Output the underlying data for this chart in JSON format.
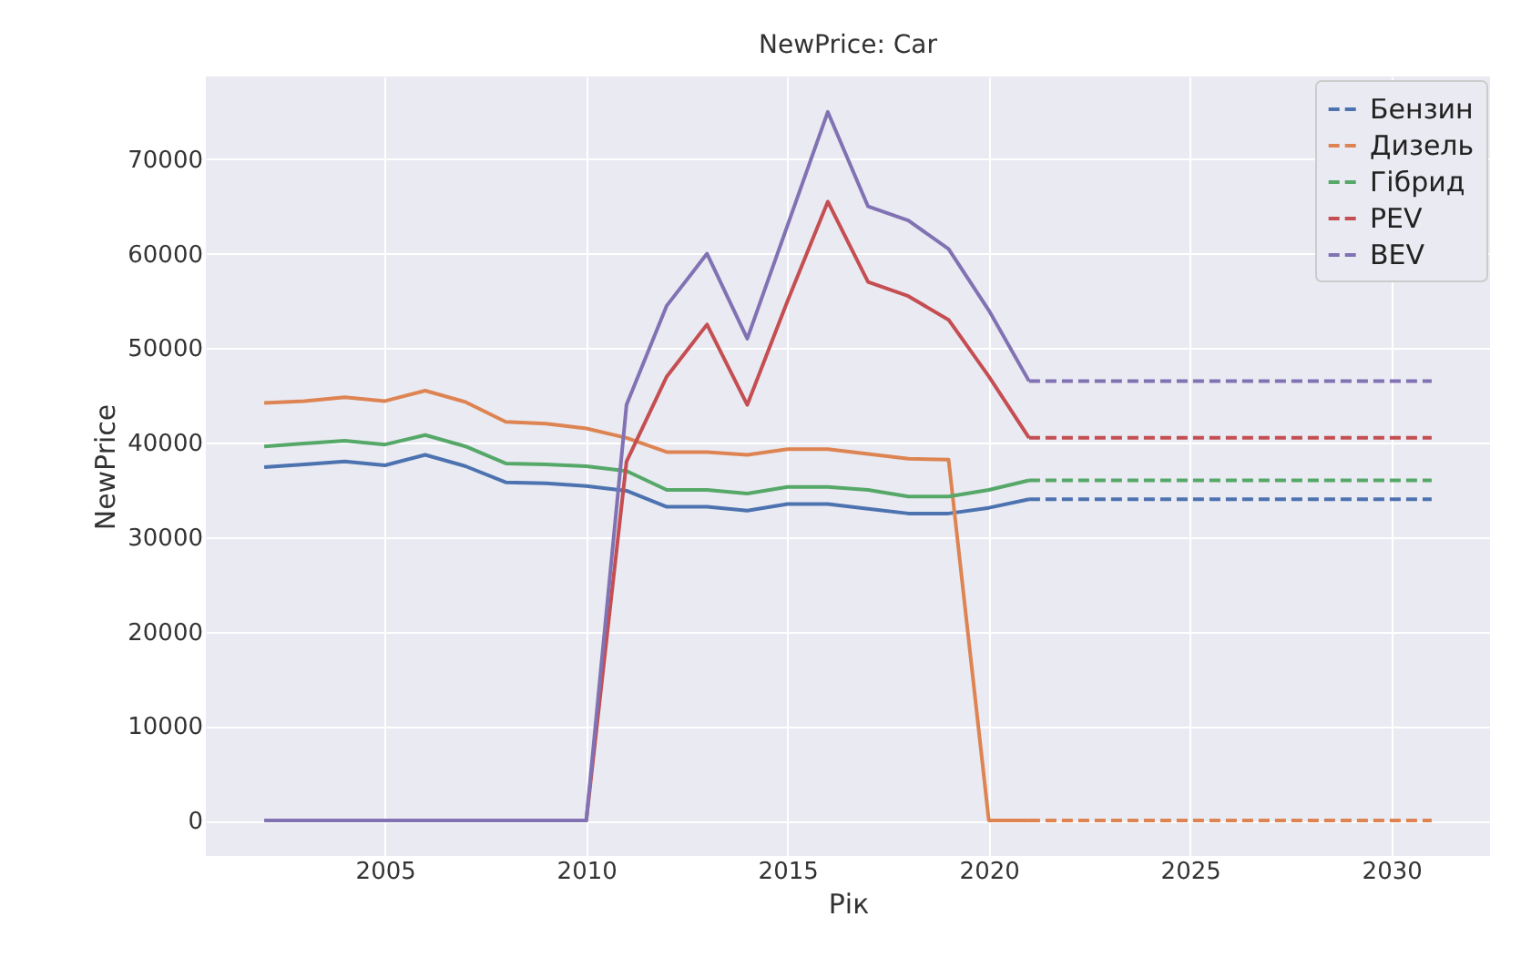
{
  "chart_data": {
    "type": "line",
    "title": "NewPrice: Car",
    "xlabel": "Рік",
    "ylabel": "NewPrice",
    "xlim": [
      2000.55,
      2032.45
    ],
    "xticks": [
      2005,
      2010,
      2015,
      2020,
      2025,
      2030
    ],
    "ylim": [
      -3750,
      78750
    ],
    "yticks": [
      0,
      10000,
      20000,
      30000,
      40000,
      50000,
      60000,
      70000
    ],
    "grid": true,
    "legend": "top right",
    "line_style": "solid",
    "series": [
      {
        "color": "#4c72b0",
        "x": [
          2002,
          2003,
          2004,
          2005,
          2006,
          2007,
          2008,
          2009,
          2010,
          2011,
          2012,
          2013,
          2014,
          2015,
          2016,
          2017,
          2018,
          2019,
          2020,
          2021
        ],
        "values": [
          37400,
          37700,
          38000,
          37600,
          38700,
          37500,
          35800,
          35700,
          35400,
          34900,
          33200,
          33200,
          32800,
          33500,
          33500,
          33000,
          32500,
          32500,
          33100,
          34000
        ]
      },
      {
        "color": "#dd8452",
        "x": [
          2002,
          2003,
          2004,
          2005,
          2006,
          2007,
          2008,
          2009,
          2010,
          2011,
          2012,
          2013,
          2014,
          2015,
          2016,
          2017,
          2018,
          2019,
          2020,
          2021
        ],
        "values": [
          44200,
          44400,
          44800,
          44400,
          45500,
          44300,
          42200,
          42000,
          41500,
          40500,
          39000,
          39000,
          38700,
          39300,
          39300,
          38800,
          38300,
          38200,
          0,
          0
        ]
      },
      {
        "color": "#55a868",
        "x": [
          2002,
          2003,
          2004,
          2005,
          2006,
          2007,
          2008,
          2009,
          2010,
          2011,
          2012,
          2013,
          2014,
          2015,
          2016,
          2017,
          2018,
          2019,
          2020,
          2021
        ],
        "values": [
          39600,
          39900,
          40200,
          39800,
          40800,
          39600,
          37800,
          37700,
          37500,
          37000,
          35000,
          35000,
          34600,
          35300,
          35300,
          35000,
          34300,
          34300,
          35000,
          36000
        ]
      },
      {
        "color": "#c44e52",
        "x": [
          2009,
          2010,
          2011,
          2012,
          2013,
          2014,
          2015,
          2016,
          2017,
          2018,
          2019,
          2020,
          2021
        ],
        "values": [
          0,
          0,
          38000,
          47000,
          52500,
          44000,
          55000,
          65500,
          57000,
          55500,
          53000,
          47000,
          40500
        ]
      },
      {
        "color": "#8172b3",
        "x": [
          2002,
          2003,
          2004,
          2005,
          2006,
          2007,
          2008,
          2009,
          2010,
          2011,
          2012,
          2013,
          2014,
          2015,
          2016,
          2017,
          2018,
          2019,
          2020,
          2021
        ],
        "values": [
          0,
          0,
          0,
          0,
          0,
          0,
          0,
          0,
          0,
          44000,
          54500,
          60000,
          51000,
          63000,
          75000,
          65000,
          63500,
          60500,
          54000,
          46500
        ]
      },
      {
        "name": "Бензин",
        "color": "#4c72b0",
        "line_style": "dashed",
        "x": [
          2021,
          2031
        ],
        "values": [
          34000,
          34000
        ]
      },
      {
        "name": "Дизель",
        "color": "#dd8452",
        "line_style": "dashed",
        "x": [
          2021,
          2031
        ],
        "values": [
          0,
          0
        ]
      },
      {
        "name": "Гібрид",
        "color": "#55a868",
        "line_style": "dashed",
        "x": [
          2021,
          2031
        ],
        "values": [
          36000,
          36000
        ]
      },
      {
        "name": "PEV",
        "color": "#c44e52",
        "line_style": "dashed",
        "x": [
          2021,
          2031
        ],
        "values": [
          40500,
          40500
        ]
      },
      {
        "name": "BEV",
        "color": "#8172b3",
        "line_style": "dashed",
        "x": [
          2021,
          2031
        ],
        "values": [
          46500,
          46500
        ]
      }
    ]
  }
}
